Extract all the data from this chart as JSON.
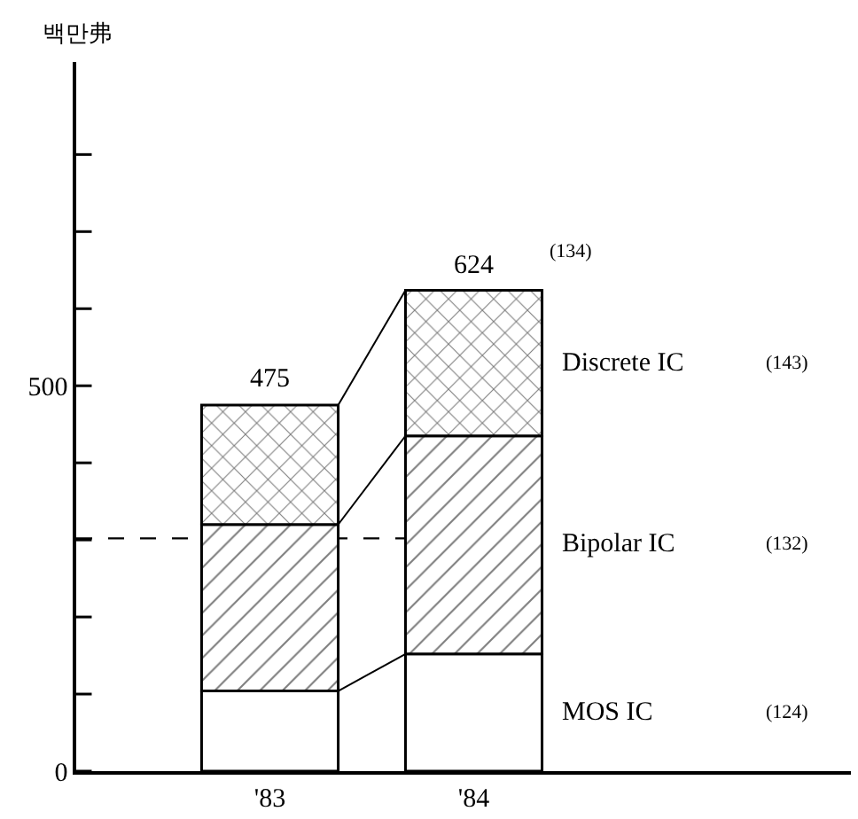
{
  "chart_data": {
    "type": "bar",
    "stacked": true,
    "ylabel": "백만弗",
    "categories": [
      "'83",
      "'84"
    ],
    "series": [
      {
        "name": "MOS IC",
        "color": "#ffffff",
        "values": [
          104,
          152
        ]
      },
      {
        "name": "Bipolar IC",
        "color": "#000000",
        "values": [
          216,
          283
        ]
      },
      {
        "name": "Discrete IC",
        "color": "#000000",
        "values": [
          155,
          189
        ]
      }
    ],
    "totals": [
      "475",
      "624"
    ],
    "ref_lines": [
      {
        "axis": "y",
        "value": 302,
        "line_style": "dashed"
      }
    ],
    "annotations": [
      "(124)",
      "(132)",
      "(143)",
      "(134)"
    ],
    "ylim": [
      0,
      920
    ],
    "yticks": [
      0,
      {
        "value": 100,
        "label": null
      },
      {
        "value": 200,
        "label": null
      },
      {
        "value": 300,
        "label": null
      },
      {
        "value": 400,
        "label": null
      },
      500,
      {
        "value": 600,
        "label": null
      },
      {
        "value": 700,
        "label": null
      },
      {
        "value": 800,
        "label": null
      }
    ],
    "grid": false,
    "legend": false
  }
}
